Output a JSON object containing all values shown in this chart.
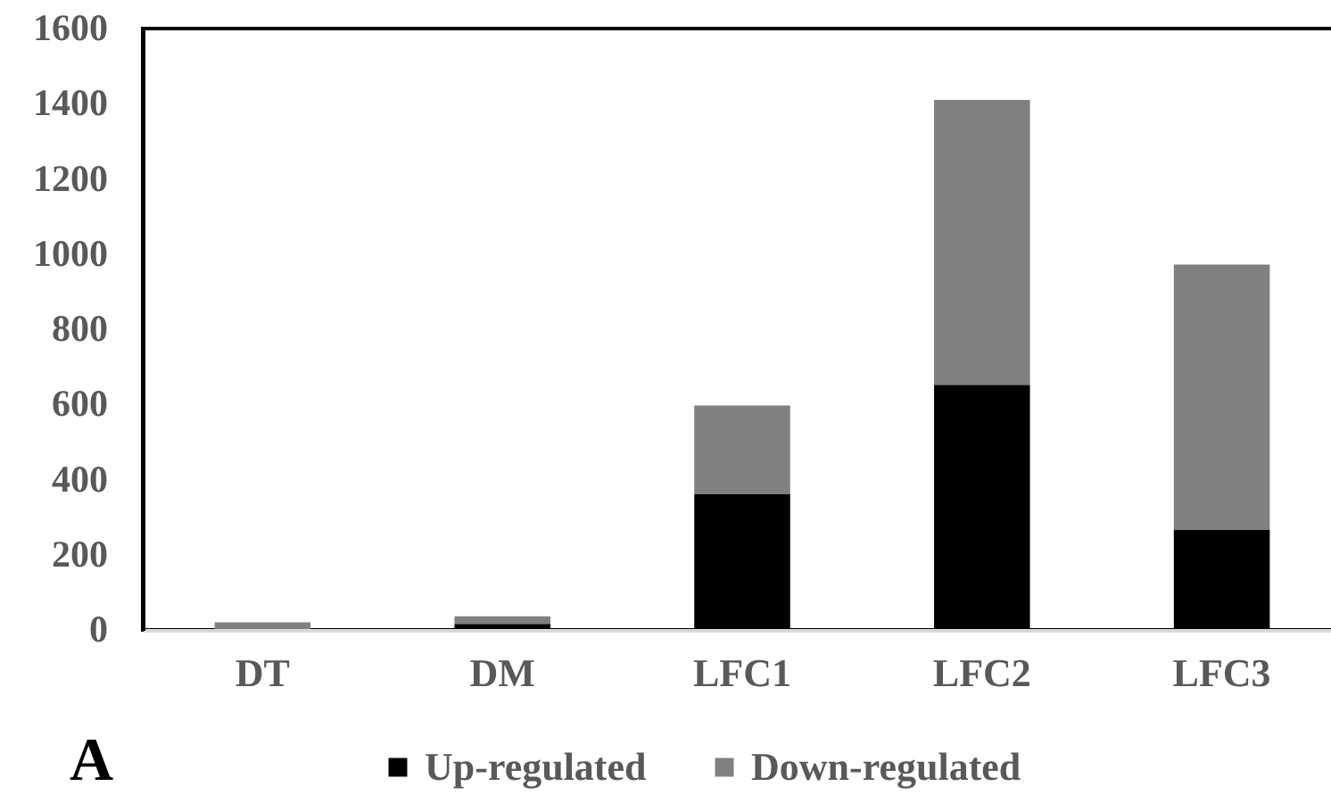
{
  "chart_data": {
    "type": "bar",
    "stacked": true,
    "categories": [
      "DT",
      "DM",
      "LFC1",
      "LFC2",
      "LFC3"
    ],
    "series": [
      {
        "name": "Up-regulated",
        "color": "#000000",
        "values": [
          0,
          16,
          362,
          652,
          267
        ]
      },
      {
        "name": "Down-regulated",
        "color": "#808080",
        "values": [
          20,
          20,
          235,
          758,
          705
        ]
      }
    ],
    "ylim": [
      0,
      1600
    ],
    "yticks": [
      0,
      200,
      400,
      600,
      800,
      1000,
      1200,
      1400,
      1600
    ],
    "legend": "bottom",
    "grid": false,
    "annotations": [
      "A"
    ]
  }
}
